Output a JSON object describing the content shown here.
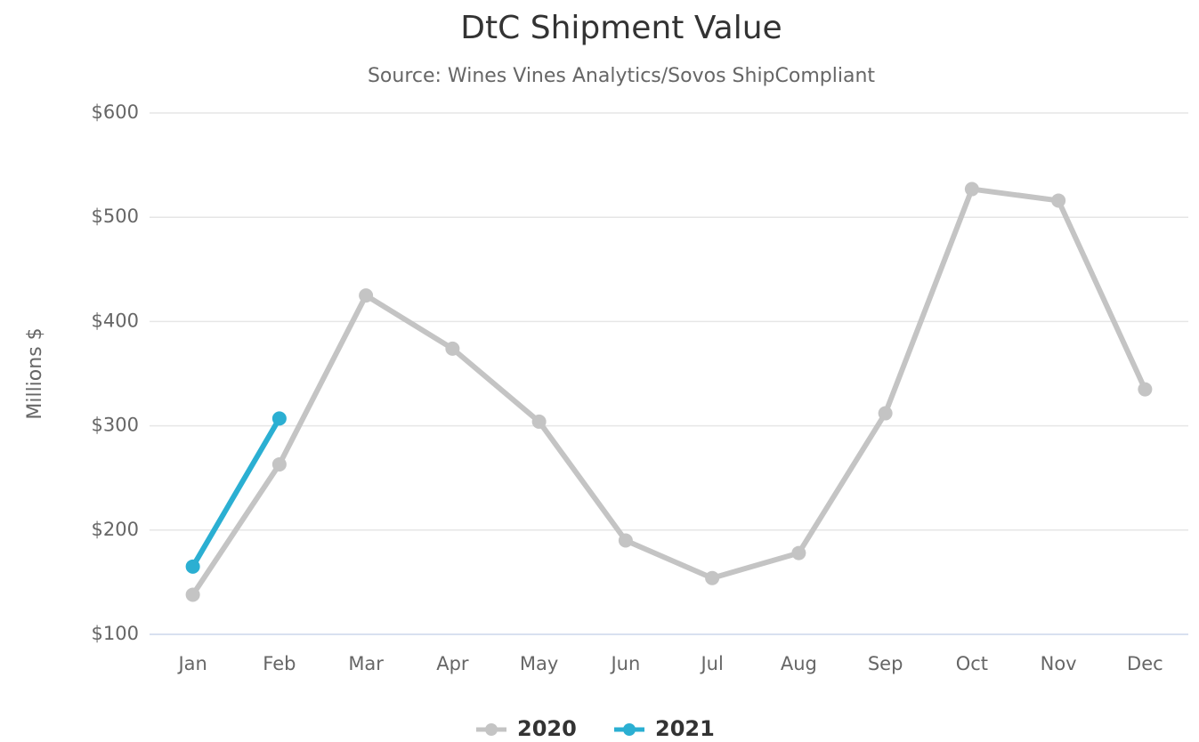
{
  "chart_data": {
    "type": "line",
    "title": "DtC Shipment Value",
    "subtitle": "Source: Wines Vines Analytics/Sovos ShipCompliant",
    "y_axis_label": "Millions $",
    "categories": [
      "Jan",
      "Feb",
      "Mar",
      "Apr",
      "May",
      "Jun",
      "Jul",
      "Aug",
      "Sep",
      "Oct",
      "Nov",
      "Dec"
    ],
    "series": [
      {
        "name": "2020",
        "color": "#c4c4c4",
        "values": [
          138,
          263,
          425,
          374,
          304,
          190,
          154,
          178,
          312,
          527,
          516,
          335
        ]
      },
      {
        "name": "2021",
        "color": "#2bafd2",
        "values": [
          165,
          307,
          null,
          null,
          null,
          null,
          null,
          null,
          null,
          null,
          null,
          null
        ]
      }
    ],
    "ylim": [
      100,
      600
    ],
    "yticks": [
      {
        "value": 100,
        "label": "$100"
      },
      {
        "value": 200,
        "label": "$200"
      },
      {
        "value": 300,
        "label": "$300"
      },
      {
        "value": 400,
        "label": "$400"
      },
      {
        "value": 500,
        "label": "$500"
      },
      {
        "value": 600,
        "label": "$600"
      }
    ],
    "grid": true,
    "legend": "bottom"
  }
}
